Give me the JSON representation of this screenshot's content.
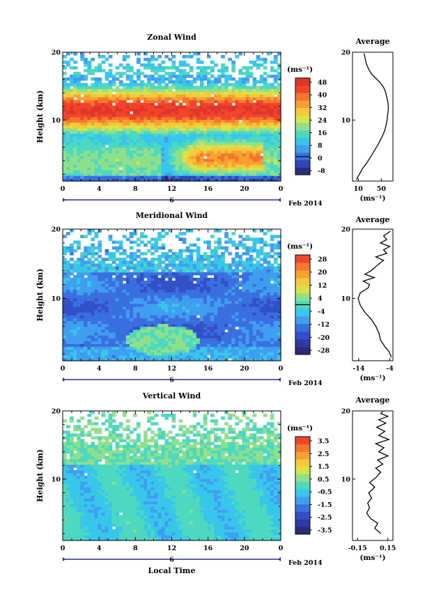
{
  "figure": {
    "xlabel": "Local Time",
    "date_label": "Feb 2014",
    "day_marker": "6",
    "x_ticks": [
      "0",
      "4",
      "8",
      "12",
      "16",
      "20",
      "0"
    ]
  },
  "chart_data": [
    {
      "type": "heatmap",
      "title": "Zonal Wind",
      "ylabel": "Height (km)",
      "yticks": [
        "20",
        "10"
      ],
      "xlim": [
        0,
        24
      ],
      "ylim": [
        1,
        20
      ],
      "colorbar": {
        "unit": "(ms⁻¹)",
        "labels": [
          "48",
          "40",
          "32",
          "24",
          "16",
          "8",
          "0",
          "-8"
        ],
        "range": [
          -12,
          52
        ],
        "zero_line": true,
        "colors": [
          "#2a2c7a",
          "#2f47b8",
          "#3a6fe0",
          "#3f9ef0",
          "#38c6ea",
          "#4dd8c0",
          "#8fe08a",
          "#d7e449",
          "#f5c93b",
          "#f7a22f",
          "#f5762d",
          "#f0442b",
          "#e0352a"
        ]
      },
      "profile": {
        "title": "Average",
        "xticks": [
          "10",
          "50"
        ],
        "xlim": [
          0,
          70
        ],
        "xlabel": "(ms⁻¹)",
        "x": [
          7,
          9,
          12,
          17,
          24,
          31,
          38,
          45,
          51,
          56,
          58,
          60,
          61,
          62,
          62,
          61,
          59,
          57,
          54,
          48,
          40,
          33,
          28,
          24,
          22,
          20
        ],
        "y": [
          1.2,
          1.6,
          2.0,
          2.8,
          3.6,
          4.5,
          5.5,
          6.5,
          7.5,
          8.5,
          9.2,
          10.0,
          10.8,
          11.5,
          12.2,
          12.8,
          13.5,
          14.2,
          14.8,
          15.5,
          16.2,
          16.8,
          17.5,
          18.3,
          19.1,
          19.8
        ]
      }
    },
    {
      "type": "heatmap",
      "title": "Meridional Wind",
      "ylabel": "Height (km)",
      "yticks": [
        "20",
        "10"
      ],
      "xlim": [
        0,
        24
      ],
      "ylim": [
        1,
        20
      ],
      "colorbar": {
        "unit": "(ms⁻¹)",
        "labels": [
          "28",
          "20",
          "12",
          "4",
          "-4",
          "-12",
          "-20",
          "-28"
        ],
        "range": [
          -32,
          32
        ],
        "zero_line": true,
        "colors": [
          "#2a2c7a",
          "#2e3aa8",
          "#3250c8",
          "#3a6fe0",
          "#3f9ef0",
          "#38c6ea",
          "#4dd8c0",
          "#8fe08a",
          "#d7e449",
          "#f5c93b",
          "#f7a22f",
          "#f5762d",
          "#f0442b"
        ]
      },
      "profile": {
        "title": "Average",
        "xticks": [
          "-14",
          "-4"
        ],
        "xlim": [
          -16,
          -3
        ],
        "xlabel": "(ms⁻¹)",
        "x": [
          -3.5,
          -4.2,
          -5.5,
          -7.0,
          -7.5,
          -8.5,
          -10.0,
          -12.0,
          -13.5,
          -14.2,
          -13.5,
          -11.0,
          -10.5,
          -12.5,
          -9.0,
          -12.0,
          -10.0,
          -8.0,
          -6.0,
          -8.5,
          -5.0,
          -6.0,
          -4.0,
          -7.0,
          -5.0,
          -6.0,
          -3.8
        ],
        "y": [
          1.5,
          2.3,
          3.0,
          4.0,
          5.0,
          6.0,
          7.0,
          8.0,
          9.0,
          10.0,
          10.8,
          11.5,
          12.0,
          12.5,
          13.0,
          13.5,
          14.0,
          14.8,
          15.5,
          16.0,
          16.5,
          17.0,
          17.5,
          18.0,
          18.5,
          19.0,
          19.7
        ]
      }
    },
    {
      "type": "heatmap",
      "title": "Vertical Wind",
      "ylabel": "Height (km)",
      "yticks": [
        "20",
        "10"
      ],
      "xlim": [
        0,
        24
      ],
      "ylim": [
        1,
        20
      ],
      "xlabel": "Local Time",
      "colorbar": {
        "unit": "(ms⁻¹)",
        "labels": [
          "3.5",
          "2.5",
          "1.5",
          "0.5",
          "-0.5",
          "-1.5",
          "-2.5",
          "-3.5"
        ],
        "range": [
          -4,
          4
        ],
        "zero_line": false,
        "colors": [
          "#2a2c7a",
          "#2e3aa8",
          "#3250c8",
          "#3a6fe0",
          "#3f9ef0",
          "#38c6ea",
          "#4dd8c0",
          "#8fe08a",
          "#d7e449",
          "#f5c93b",
          "#f7a22f",
          "#f5762d",
          "#f0442b"
        ]
      },
      "profile": {
        "title": "Average",
        "xticks": [
          "-0.15",
          "0.15"
        ],
        "xlim": [
          -0.2,
          0.2
        ],
        "xlabel": "(ms⁻¹)",
        "x": [
          0.08,
          0.02,
          0.05,
          -0.02,
          -0.06,
          -0.03,
          -0.05,
          -0.01,
          -0.04,
          0.02,
          -0.03,
          0.03,
          0.08,
          0.03,
          0.1,
          0.05,
          0.15,
          0.06,
          0.11,
          0.03,
          0.16,
          0.06,
          0.12,
          0.04,
          0.13,
          0.06,
          0.15,
          0.08,
          0.1
        ],
        "y": [
          2.0,
          2.8,
          3.5,
          4.2,
          5.0,
          5.8,
          6.5,
          7.2,
          8.0,
          8.8,
          9.5,
          10.2,
          11.0,
          11.6,
          12.2,
          12.8,
          13.4,
          14.0,
          14.6,
          15.2,
          15.8,
          16.4,
          17.0,
          17.6,
          18.2,
          18.7,
          19.2,
          19.6,
          19.9
        ]
      }
    }
  ]
}
